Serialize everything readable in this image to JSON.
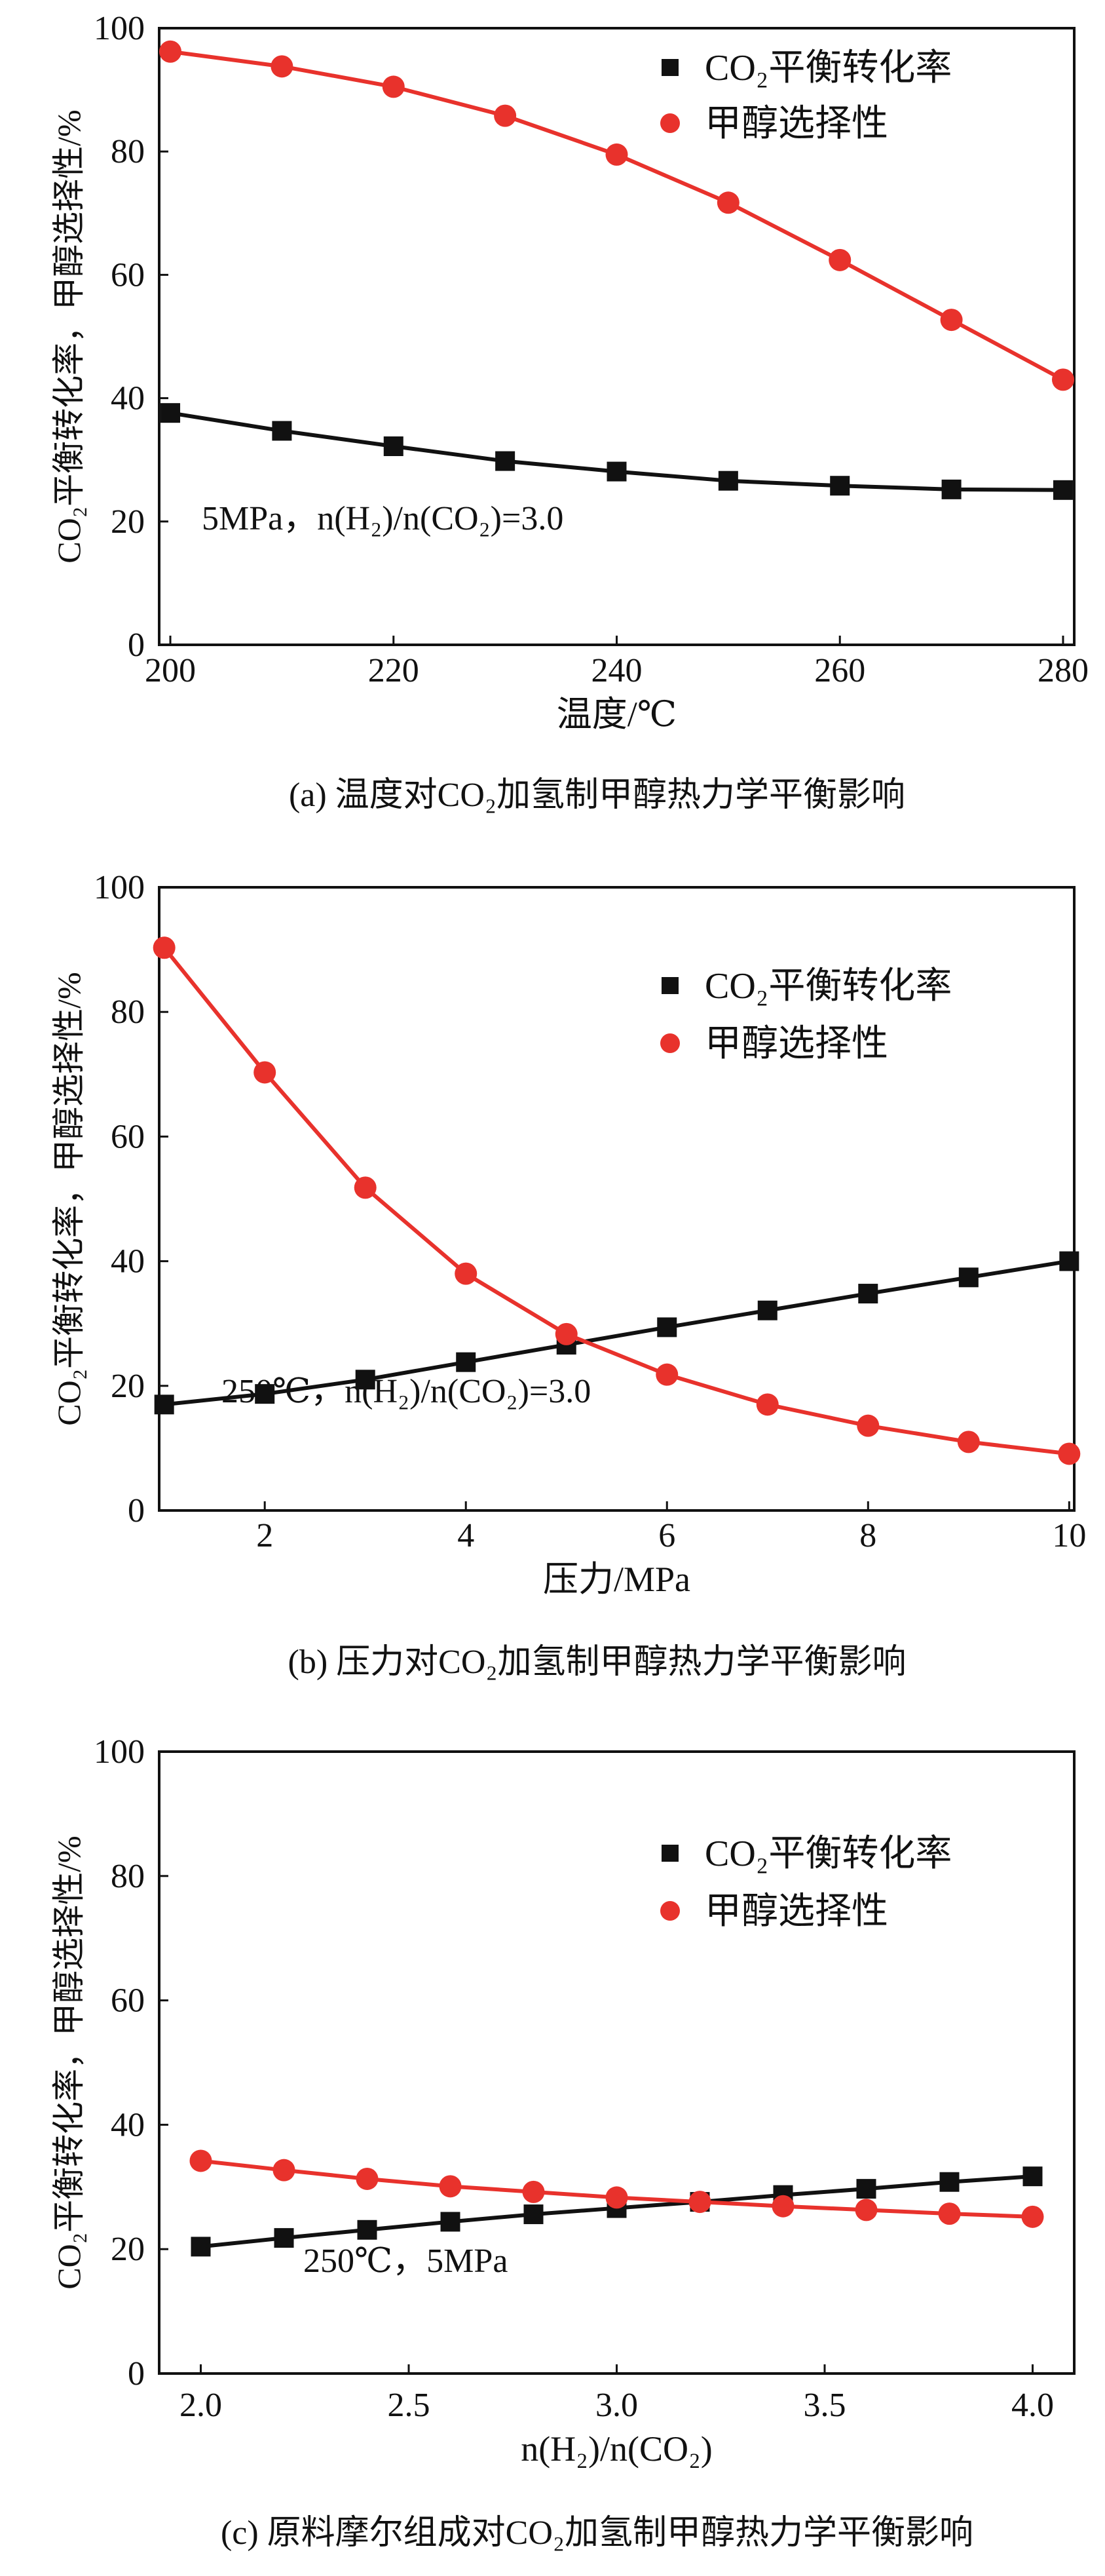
{
  "colors": {
    "conversion": "#111111",
    "selectivity": "#e8322c",
    "axis": "#111111"
  },
  "ylabel": "CO₂平衡转化率，甲醇选择性/%",
  "legend": {
    "conversion": "CO₂平衡转化率",
    "selectivity": "甲醇选择性"
  },
  "chart_data": [
    {
      "type": "line",
      "title": "(a) 温度对CO₂加氢制甲醇热力学平衡影响",
      "xlabel": "温度/℃",
      "ylabel": "CO₂平衡转化率，甲醇选择性/%",
      "annotation": "5MPa，n(H₂)/n(CO₂)=3.0",
      "xlim": [
        199,
        281
      ],
      "ylim": [
        0,
        100
      ],
      "xticks": [
        200,
        220,
        240,
        260,
        280
      ],
      "xtick_labels": [
        "200",
        "220",
        "240",
        "260",
        "280"
      ],
      "yticks": [
        0,
        20,
        40,
        60,
        80,
        100
      ],
      "ytick_labels": [
        "0",
        "20",
        "40",
        "60",
        "80",
        "100"
      ],
      "legend_position": "top-right",
      "grid": false,
      "x": [
        200,
        210,
        220,
        230,
        240,
        250,
        260,
        270,
        280
      ],
      "series": [
        {
          "name": "CO₂平衡转化率",
          "marker": "square",
          "values": [
            37.6,
            34.7,
            32.2,
            29.8,
            28.1,
            26.6,
            25.8,
            25.2,
            25.1
          ]
        },
        {
          "name": "甲醇选择性",
          "marker": "circle",
          "values": [
            96.2,
            93.8,
            90.5,
            85.8,
            79.5,
            71.7,
            62.4,
            52.7,
            43.0
          ]
        }
      ]
    },
    {
      "type": "line",
      "title": "(b) 压力对CO₂加氢制甲醇热力学平衡影响",
      "xlabel": "压力/MPa",
      "ylabel": "CO₂平衡转化率，甲醇选择性/%",
      "annotation": "250℃，n(H₂)/n(CO₂)=3.0",
      "xlim": [
        0.95,
        10.05
      ],
      "ylim": [
        0,
        100
      ],
      "xticks": [
        2,
        4,
        6,
        8,
        10
      ],
      "xtick_labels": [
        "2",
        "4",
        "6",
        "8",
        "10"
      ],
      "yticks": [
        0,
        20,
        40,
        60,
        80,
        100
      ],
      "ytick_labels": [
        "0",
        "20",
        "40",
        "60",
        "80",
        "100"
      ],
      "legend_position": "top-right",
      "grid": false,
      "x": [
        1,
        2,
        3,
        4,
        5,
        6,
        7,
        8,
        9,
        10
      ],
      "series": [
        {
          "name": "CO₂平衡转化率",
          "marker": "square",
          "values": [
            17.0,
            18.7,
            21.0,
            23.8,
            26.6,
            29.4,
            32.1,
            34.8,
            37.4,
            40.0
          ]
        },
        {
          "name": "甲醇选择性",
          "marker": "circle",
          "values": [
            90.3,
            70.3,
            51.8,
            38.0,
            28.3,
            21.8,
            17.0,
            13.6,
            11.0,
            9.1
          ]
        }
      ]
    },
    {
      "type": "line",
      "title": "(c) 原料摩尔组成对CO₂加氢制甲醇热力学平衡影响",
      "xlabel": "n(H₂)/n(CO₂)",
      "ylabel": "CO₂平衡转化率，甲醇选择性/%",
      "annotation": "250℃，5MPa",
      "xlim": [
        1.9,
        4.1
      ],
      "ylim": [
        0,
        100
      ],
      "xticks": [
        2.0,
        2.5,
        3.0,
        3.5,
        4.0
      ],
      "xtick_labels": [
        "2.0",
        "2.5",
        "3.0",
        "3.5",
        "4.0"
      ],
      "yticks": [
        0,
        20,
        40,
        60,
        80,
        100
      ],
      "ytick_labels": [
        "0",
        "20",
        "40",
        "60",
        "80",
        "100"
      ],
      "legend_position": "top-right",
      "grid": false,
      "x": [
        2.0,
        2.2,
        2.4,
        2.6,
        2.8,
        3.0,
        3.2,
        3.4,
        3.6,
        3.8,
        4.0
      ],
      "series": [
        {
          "name": "CO₂平衡转化率",
          "marker": "square",
          "values": [
            20.4,
            21.8,
            23.1,
            24.4,
            25.6,
            26.6,
            27.6,
            28.7,
            29.7,
            30.8,
            31.7
          ]
        },
        {
          "name": "甲醇选择性",
          "marker": "circle",
          "values": [
            34.2,
            32.7,
            31.3,
            30.1,
            29.2,
            28.3,
            27.6,
            26.9,
            26.3,
            25.7,
            25.2
          ]
        }
      ]
    }
  ]
}
